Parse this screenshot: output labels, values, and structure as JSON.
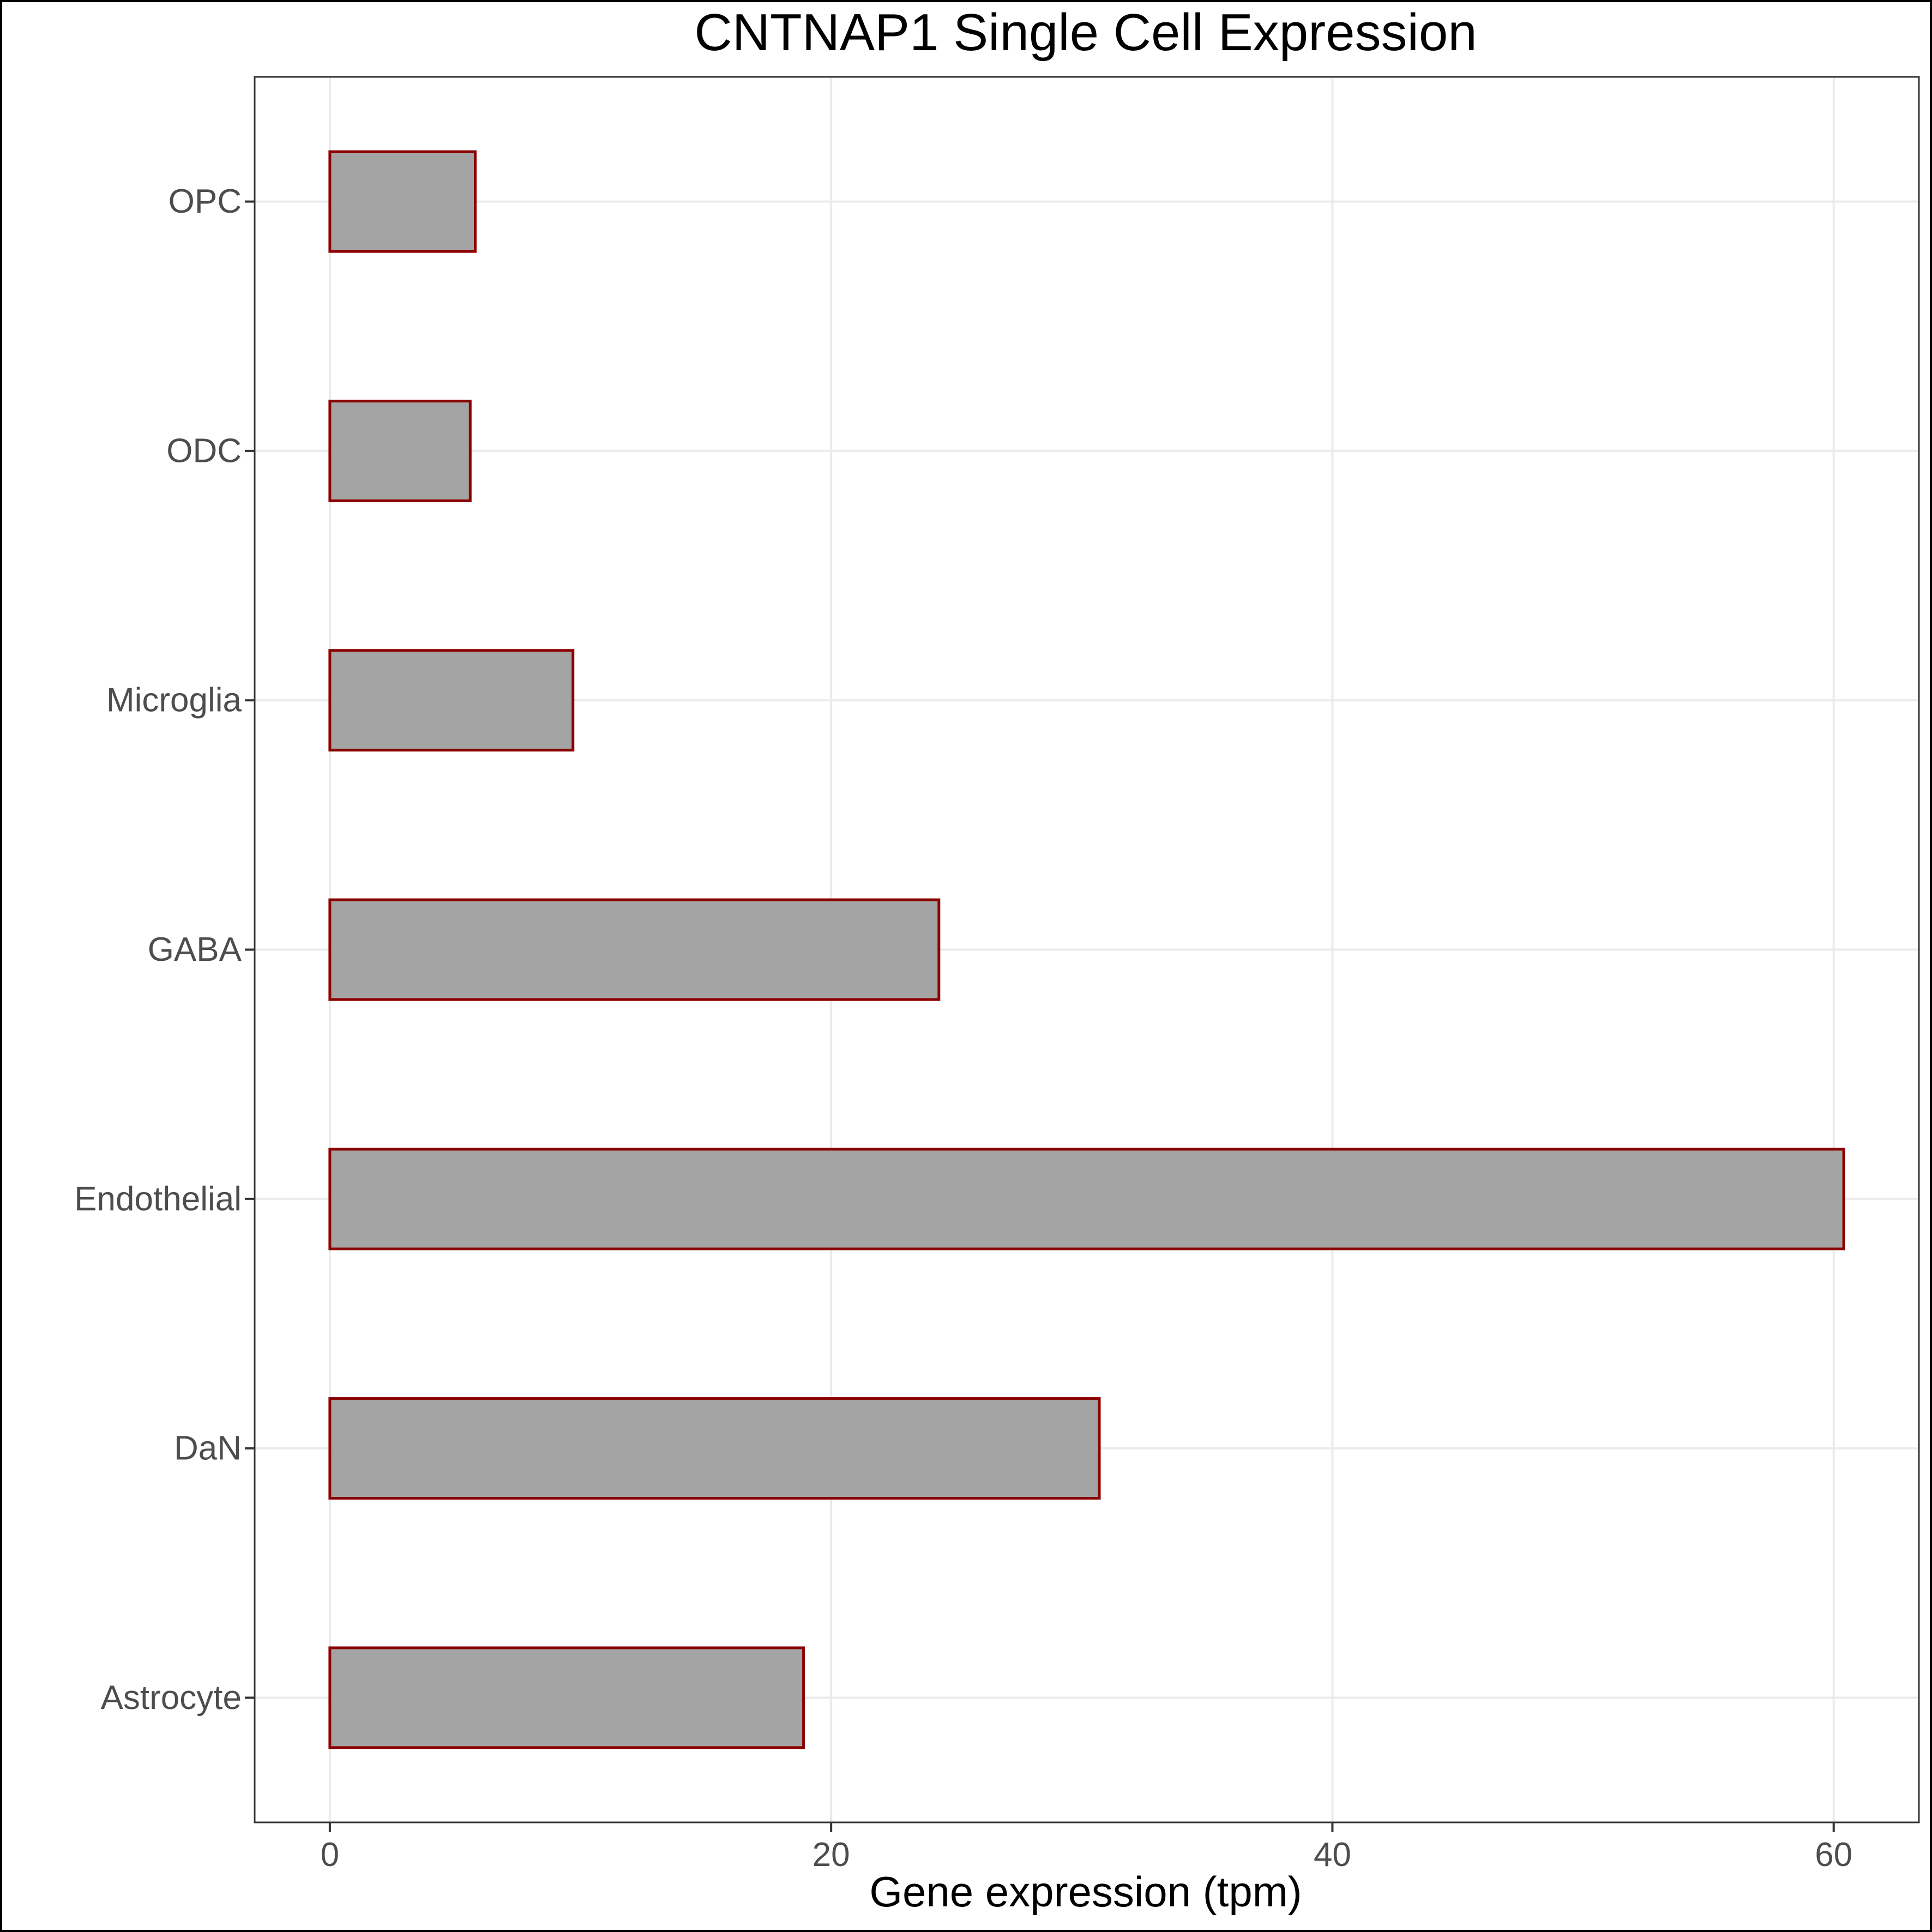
{
  "chart_data": {
    "type": "bar",
    "orientation": "horizontal",
    "title": "CNTNAP1 Single Cell Expression",
    "xlabel": "Gene expression (tpm)",
    "ylabel": "",
    "categories": [
      "Astrocyte",
      "DaN",
      "Endothelial",
      "GABA",
      "Microglia",
      "ODC",
      "OPC"
    ],
    "values": [
      18.9,
      30.7,
      60.4,
      24.3,
      9.7,
      5.6,
      5.8
    ],
    "xlim": [
      -3,
      63.4
    ],
    "xticks": [
      0,
      20,
      40,
      60
    ],
    "xtick_labels": [
      "0",
      "20",
      "40",
      "60"
    ],
    "grid": true,
    "legend": "none",
    "colors": {
      "bar_fill": "#a4a4a4",
      "bar_outline": "#8b0000",
      "grid": "#ebebeb"
    }
  }
}
